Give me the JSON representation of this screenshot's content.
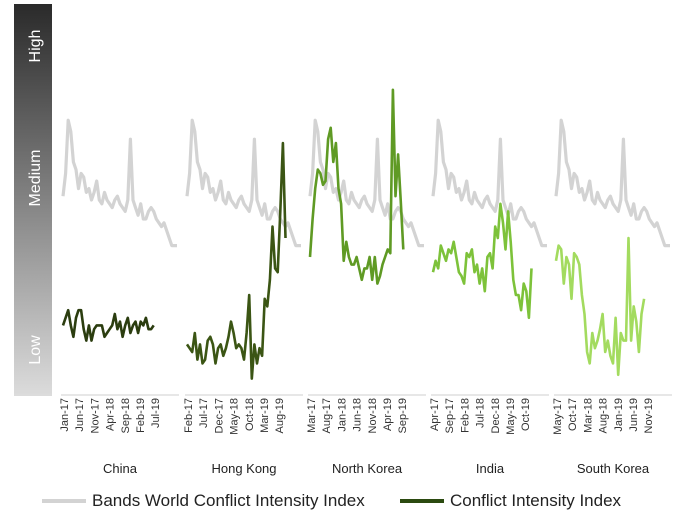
{
  "chart_data": {
    "type": "line",
    "y_bands": [
      "High",
      "Medium",
      "Low"
    ],
    "colors": {
      "benchmark": "#d3d3d3",
      "China": "#2b3d0f",
      "Hong Kong": "#3b5514",
      "North Korea": "#5f9a24",
      "India": "#7dc23a",
      "South Korea": "#a3db5f"
    },
    "legend": [
      {
        "name": "Bands World Conflict Intensity Index",
        "color": "#d3d3d3"
      },
      {
        "name": "Conflict Intensity Index",
        "color": "#2b4a10"
      }
    ],
    "groups": [
      {
        "name": "China",
        "ticks": [
          "Jan-17",
          "Jun-17",
          "Nov-17",
          "Apr-18",
          "Sep-18",
          "Feb-19",
          "Jul-19"
        ],
        "benchmark": [
          51,
          57,
          71,
          68,
          60,
          58,
          53,
          57,
          56,
          52,
          53,
          50,
          52,
          55,
          50,
          49,
          52,
          50,
          49,
          48,
          50,
          51,
          49,
          48,
          47,
          50,
          66,
          50,
          48,
          46,
          49,
          45,
          45,
          47,
          48,
          47,
          45,
          44,
          43,
          44,
          42,
          40,
          38,
          38,
          38
        ],
        "series": [
          17,
          19,
          21,
          17,
          14,
          19,
          21,
          21,
          16,
          13,
          17,
          13,
          16,
          17,
          17,
          17,
          14,
          15,
          16,
          17,
          20,
          16,
          18,
          14,
          17,
          19,
          15,
          17,
          18,
          15,
          18,
          17,
          19,
          16,
          16,
          17
        ]
      },
      {
        "name": "Hong Kong",
        "ticks": [
          "Feb-17",
          "Jul-17",
          "Dec-17",
          "May-18",
          "Oct-18",
          "Mar-19",
          "Aug-19"
        ],
        "benchmark": [
          51,
          57,
          71,
          68,
          60,
          58,
          53,
          57,
          56,
          52,
          53,
          50,
          52,
          55,
          50,
          49,
          52,
          50,
          49,
          48,
          50,
          51,
          49,
          48,
          47,
          50,
          66,
          50,
          48,
          46,
          49,
          45,
          45,
          47,
          48,
          47,
          45,
          44,
          43,
          44,
          42,
          40,
          38,
          38,
          38
        ],
        "series": [
          12,
          11,
          10,
          15,
          8,
          12,
          7,
          8,
          13,
          14,
          12,
          7,
          11,
          12,
          9,
          11,
          14,
          18,
          15,
          11,
          12,
          11,
          8,
          15,
          25,
          3,
          12,
          7,
          11,
          9,
          24,
          22,
          29,
          43,
          32,
          31,
          47,
          65,
          40
        ]
      },
      {
        "name": "North Korea",
        "ticks": [
          "Mar-17",
          "Aug-17",
          "Jan-18",
          "Jun-18",
          "Nov-18",
          "Apr-19",
          "Sep-19"
        ],
        "benchmark": [
          51,
          57,
          71,
          68,
          60,
          58,
          53,
          57,
          56,
          52,
          53,
          50,
          52,
          55,
          50,
          49,
          52,
          50,
          49,
          48,
          50,
          51,
          49,
          48,
          47,
          50,
          66,
          50,
          48,
          46,
          49,
          45,
          45,
          47,
          48,
          47,
          45,
          44,
          43,
          44,
          42,
          40,
          38,
          38,
          38
        ],
        "series": [
          35,
          45,
          53,
          58,
          57,
          54,
          55,
          66,
          69,
          60,
          65,
          53,
          49,
          34,
          39,
          35,
          33,
          33,
          35,
          32,
          29,
          32,
          32,
          35,
          29,
          35,
          28,
          30,
          33,
          35,
          37,
          36,
          79,
          51,
          62,
          50,
          37
        ]
      },
      {
        "name": "India",
        "ticks": [
          "Apr-17",
          "Sep-17",
          "Feb-18",
          "Jul-18",
          "Dec-18",
          "May-19",
          "Oct-19"
        ],
        "benchmark": [
          51,
          57,
          71,
          68,
          60,
          58,
          53,
          57,
          56,
          52,
          53,
          50,
          52,
          55,
          50,
          49,
          52,
          50,
          49,
          48,
          50,
          51,
          49,
          48,
          47,
          50,
          66,
          50,
          48,
          46,
          49,
          45,
          45,
          47,
          48,
          47,
          45,
          44,
          43,
          44,
          42,
          40,
          38,
          38,
          38
        ],
        "series": [
          31,
          34,
          32,
          38,
          36,
          34,
          37,
          36,
          39,
          35,
          31,
          30,
          28,
          36,
          35,
          37,
          31,
          33,
          28,
          32,
          26,
          35,
          36,
          32,
          43,
          40,
          49,
          44,
          37,
          47,
          39,
          29,
          25,
          25,
          21,
          28,
          26,
          19,
          32
        ]
      },
      {
        "name": "South Korea",
        "ticks": [
          "May-17",
          "Oct-17",
          "Mar-18",
          "Aug-18",
          "Jan-19",
          "Jun-19",
          "Nov-19"
        ],
        "benchmark": [
          51,
          57,
          71,
          68,
          60,
          58,
          53,
          57,
          56,
          52,
          53,
          50,
          52,
          55,
          50,
          49,
          52,
          50,
          49,
          48,
          50,
          51,
          49,
          48,
          47,
          50,
          66,
          50,
          48,
          46,
          49,
          45,
          45,
          47,
          48,
          47,
          45,
          44,
          43,
          44,
          42,
          40,
          38,
          38,
          38
        ],
        "series": [
          34,
          38,
          37,
          28,
          35,
          33,
          24,
          36,
          35,
          33,
          25,
          20,
          10,
          7,
          15,
          11,
          13,
          16,
          20,
          10,
          13,
          9,
          7,
          19,
          4,
          15,
          13,
          13,
          40,
          13,
          22,
          18,
          10,
          20,
          24
        ]
      }
    ]
  }
}
